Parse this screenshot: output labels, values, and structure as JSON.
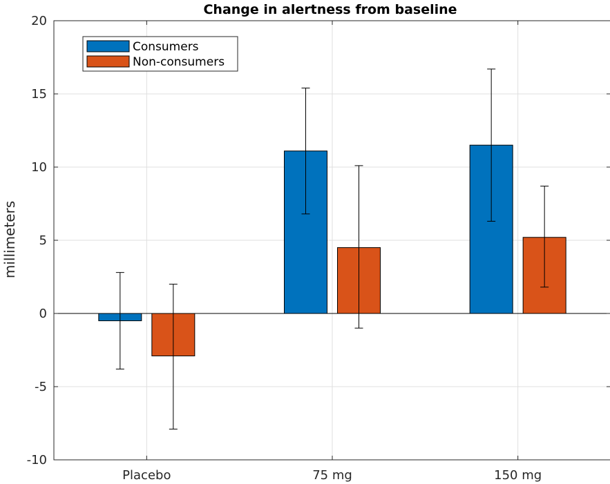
{
  "chart_data": {
    "type": "bar",
    "title": "Change in alertness from baseline",
    "xlabel": "",
    "ylabel": "millimeters",
    "categories": [
      "Placebo",
      "75 mg",
      "150 mg"
    ],
    "ylim": [
      -10,
      20
    ],
    "yticks": [
      -10,
      -5,
      0,
      5,
      10,
      15,
      20
    ],
    "grid": true,
    "legend_position": "top-left",
    "series": [
      {
        "name": "Consumers",
        "color": "#0072BD",
        "values": [
          -0.5,
          11.1,
          11.5
        ],
        "error_low": [
          -3.8,
          6.8,
          6.3
        ],
        "error_high": [
          2.8,
          15.4,
          16.7
        ]
      },
      {
        "name": "Non-consumers",
        "color": "#D95319",
        "values": [
          -2.9,
          4.5,
          5.2
        ],
        "error_low": [
          -7.9,
          -1.0,
          1.8
        ],
        "error_high": [
          2.0,
          10.1,
          8.7
        ]
      }
    ]
  }
}
